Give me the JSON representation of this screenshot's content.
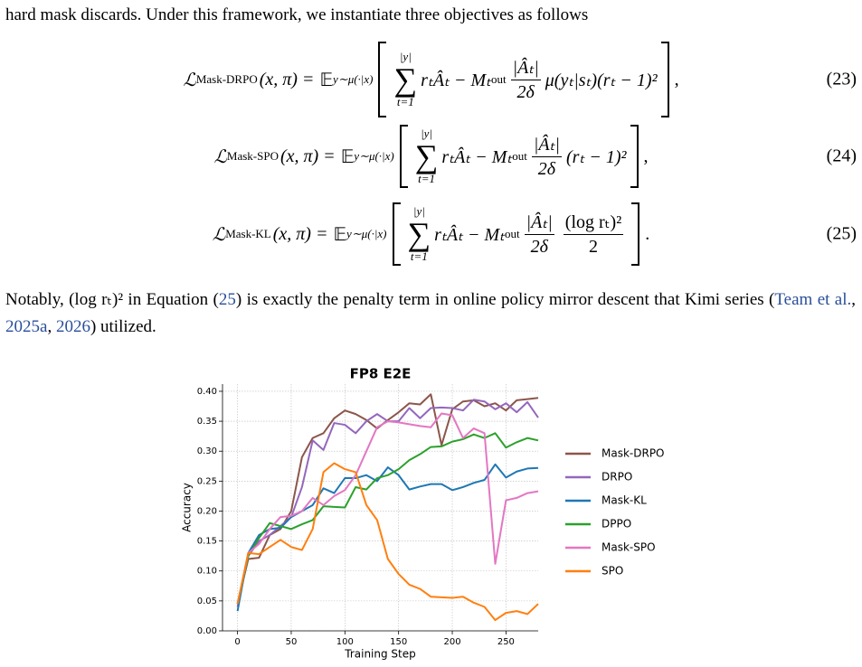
{
  "intro": "hard mask discards. Under this framework, we instantiate three objectives as follows",
  "equation_common": {
    "script_L": "ℒ",
    "args": "(x, π) =",
    "expectation": "𝔼",
    "expectation_sub": "y∼μ(·|x)",
    "sum_top": "|y|",
    "sum": "∑",
    "sum_bottom": "t=1",
    "term": "rₜÂₜ − Mₜ",
    "term_sup": "out",
    "frac_num": "|Âₜ|",
    "frac_den": "2δ"
  },
  "equations": [
    {
      "name": "Mask-DRPO",
      "penalty": "μ(yₜ|sₜ)(rₜ − 1)²",
      "punct": ",",
      "number": "(23)"
    },
    {
      "name": "Mask-SPO",
      "penalty": "(rₜ − 1)²",
      "punct": ",",
      "number": "(24)"
    },
    {
      "name": "Mask-KL",
      "penalty_num": "(log rₜ)²",
      "penalty_den": "2",
      "punct": ".",
      "number": "(25)"
    }
  ],
  "notably": [
    {
      "text": "Notably, (log rₜ)² in Equation ("
    },
    {
      "text": "25",
      "link": true
    },
    {
      "text": ") is exactly the penalty term in online policy mirror descent that Kimi series ("
    },
    {
      "text": "Team et al.",
      "link": true
    },
    {
      "text": ", "
    },
    {
      "text": "2025a",
      "link": true
    },
    {
      "text": ", "
    },
    {
      "text": "2026",
      "link": true
    },
    {
      "text": ") utilized."
    }
  ],
  "chart_data": {
    "type": "line",
    "title": "FP8 E2E",
    "x_label": "Training Step",
    "y_label": "Accuracy",
    "x": [
      0,
      10,
      20,
      30,
      40,
      50,
      60,
      70,
      80,
      90,
      100,
      110,
      120,
      130,
      140,
      150,
      160,
      170,
      180,
      190,
      200,
      210,
      220,
      230,
      240,
      250,
      260,
      270,
      280
    ],
    "series": [
      {
        "name": "Mask-DRPO",
        "color": "#8c564b",
        "values": [
          0.045,
          0.12,
          0.122,
          0.16,
          0.17,
          0.2,
          0.29,
          0.322,
          0.33,
          0.355,
          0.368,
          0.362,
          0.352,
          0.338,
          0.352,
          0.365,
          0.38,
          0.378,
          0.395,
          0.31,
          0.37,
          0.383,
          0.385,
          0.375,
          0.38,
          0.368,
          0.385,
          0.387,
          0.389
        ]
      },
      {
        "name": "DRPO",
        "color": "#9467bd",
        "values": [
          0.04,
          0.125,
          0.15,
          0.16,
          0.175,
          0.19,
          0.24,
          0.318,
          0.302,
          0.347,
          0.344,
          0.33,
          0.35,
          0.362,
          0.35,
          0.35,
          0.372,
          0.355,
          0.372,
          0.373,
          0.372,
          0.368,
          0.386,
          0.383,
          0.37,
          0.38,
          0.365,
          0.382,
          0.356
        ]
      },
      {
        "name": "Mask-KL",
        "color": "#1f77b4",
        "values": [
          0.033,
          0.13,
          0.16,
          0.17,
          0.172,
          0.19,
          0.2,
          0.21,
          0.238,
          0.23,
          0.255,
          0.255,
          0.26,
          0.25,
          0.273,
          0.26,
          0.236,
          0.241,
          0.245,
          0.245,
          0.235,
          0.24,
          0.247,
          0.252,
          0.278,
          0.256,
          0.266,
          0.271,
          0.272
        ]
      },
      {
        "name": "DPPO",
        "color": "#2ca02c",
        "values": [
          0.045,
          0.125,
          0.155,
          0.18,
          0.175,
          0.17,
          0.178,
          0.185,
          0.208,
          0.207,
          0.206,
          0.24,
          0.236,
          0.255,
          0.26,
          0.27,
          0.285,
          0.295,
          0.307,
          0.308,
          0.316,
          0.32,
          0.328,
          0.322,
          0.33,
          0.306,
          0.315,
          0.322,
          0.318
        ]
      },
      {
        "name": "Mask-SPO",
        "color": "#e377c2",
        "values": [
          0.045,
          0.13,
          0.145,
          0.17,
          0.19,
          0.192,
          0.2,
          0.222,
          0.21,
          0.225,
          0.235,
          0.26,
          0.3,
          0.34,
          0.35,
          0.348,
          0.345,
          0.342,
          0.34,
          0.363,
          0.36,
          0.322,
          0.338,
          0.33,
          0.112,
          0.218,
          0.222,
          0.23,
          0.233
        ]
      },
      {
        "name": "SPO",
        "color": "#ff7f0e",
        "values": [
          0.045,
          0.13,
          0.128,
          0.14,
          0.152,
          0.14,
          0.135,
          0.17,
          0.265,
          0.28,
          0.27,
          0.265,
          0.21,
          0.185,
          0.12,
          0.095,
          0.077,
          0.07,
          0.057,
          0.056,
          0.055,
          0.057,
          0.047,
          0.04,
          0.018,
          0.03,
          0.033,
          0.028,
          0.045
        ]
      }
    ],
    "xlim": [
      -14,
      280
    ],
    "ylim": [
      0,
      0.412
    ],
    "xticks": [
      0,
      50,
      100,
      150,
      200,
      250
    ],
    "yticks": [
      {
        "value": 0,
        "label": "0.00"
      },
      {
        "value": 0.05,
        "label": "0.05"
      },
      {
        "value": 0.1,
        "label": "0.10"
      },
      {
        "value": 0.15,
        "label": "0.15"
      },
      {
        "value": 0.2,
        "label": "0.20"
      },
      {
        "value": 0.25,
        "label": "0.25"
      },
      {
        "value": 0.3,
        "label": "0.30"
      },
      {
        "value": 0.35,
        "label": "0.35"
      },
      {
        "value": 0.4,
        "label": "0.40"
      }
    ],
    "grid": true,
    "legend": "outside-right"
  }
}
